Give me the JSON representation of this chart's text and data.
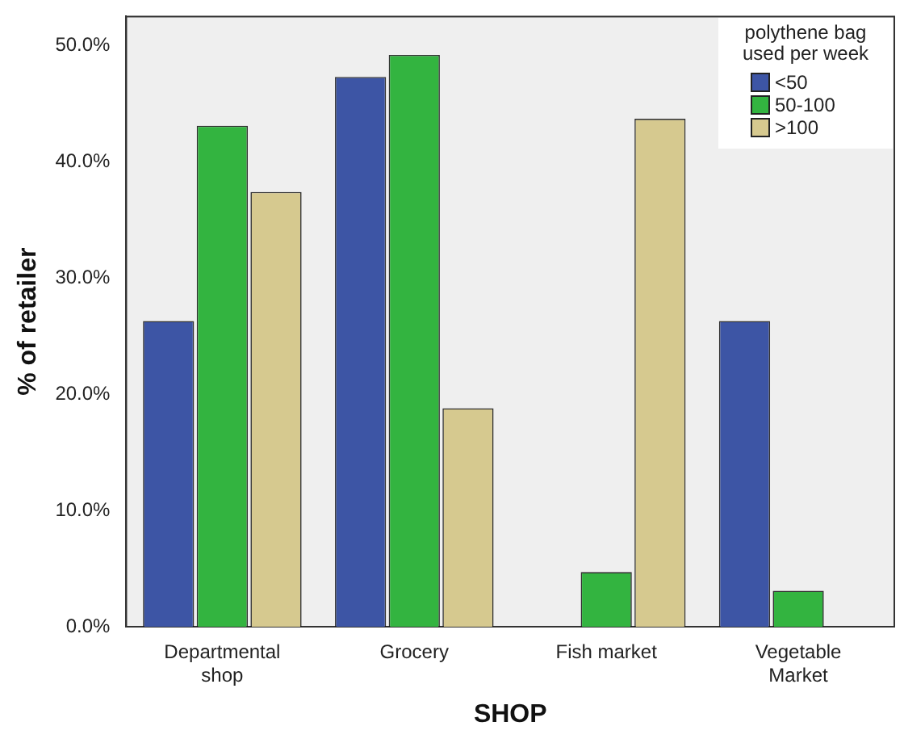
{
  "chart_data": {
    "type": "bar",
    "xlabel": "SHOP",
    "ylabel": "% of retailer",
    "legend_title": "polythene bag used per week",
    "legend": "top right",
    "grid": false,
    "categories": [
      "Departmental shop",
      "Grocery",
      "Fish market",
      "Vegetable Market"
    ],
    "series": [
      {
        "name": "<50",
        "color": "#3d55a5",
        "values": [
          26.3,
          47.3,
          0,
          26.3
        ]
      },
      {
        "name": "50-100",
        "color": "#33b440",
        "values": [
          43.1,
          49.2,
          4.7,
          3.1
        ]
      },
      {
        "name": ">100",
        "color": "#d6c98f",
        "values": [
          37.4,
          18.8,
          43.7,
          0
        ]
      }
    ],
    "ylim": [
      0,
      52.5
    ],
    "yticks": [
      {
        "value": 0,
        "label": "0.0%"
      },
      {
        "value": 10,
        "label": "10.0%"
      },
      {
        "value": 20,
        "label": "20.0%"
      },
      {
        "value": 30,
        "label": "30.0%"
      },
      {
        "value": 40,
        "label": "40.0%"
      },
      {
        "value": 50,
        "label": "50.0%"
      }
    ]
  }
}
